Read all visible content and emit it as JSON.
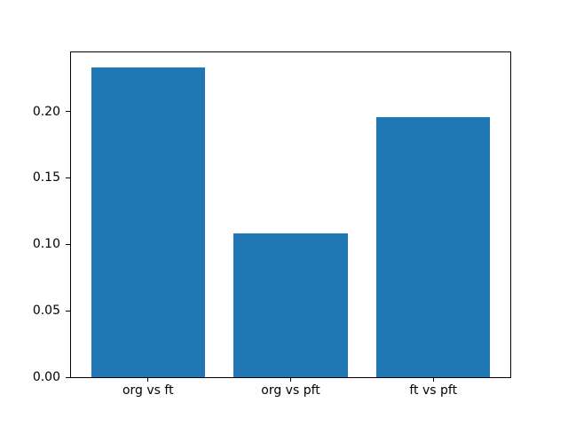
{
  "figure": {
    "background": "#ffffff",
    "spine_color": "#000000",
    "tick_color": "#000000"
  },
  "chart_data": {
    "type": "bar",
    "categories": [
      "org vs ft",
      "org vs pft",
      "ft vs pft"
    ],
    "values": [
      0.233,
      0.108,
      0.196
    ],
    "title": "",
    "xlabel": "",
    "ylabel": "",
    "ylim": [
      0,
      0.2445
    ],
    "yticks": [
      "0.00",
      "0.05",
      "0.10",
      "0.15",
      "0.20"
    ],
    "bar_color": "#1f77b4",
    "grid": false,
    "legend": null
  }
}
